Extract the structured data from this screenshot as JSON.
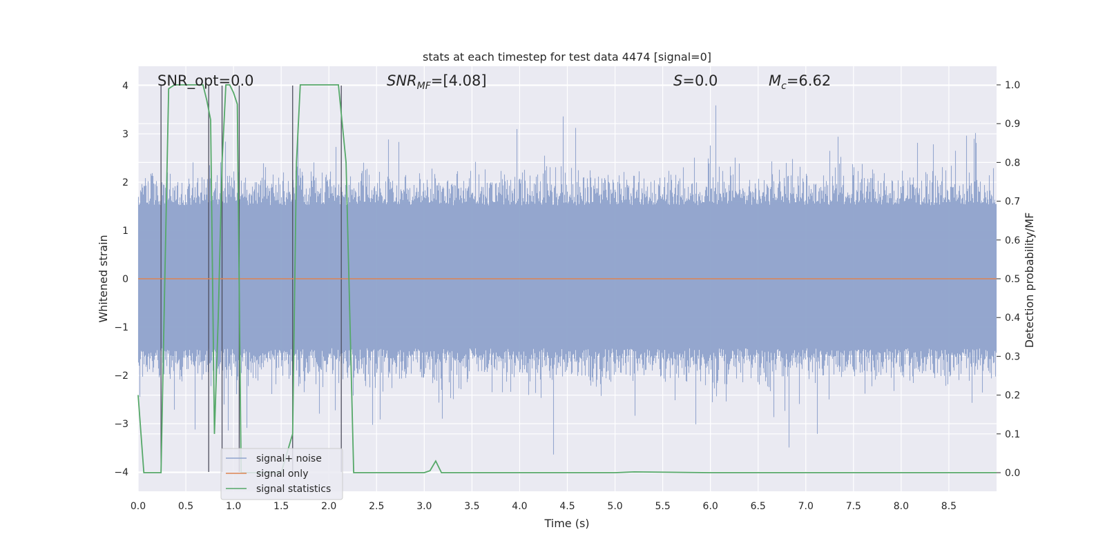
{
  "chart_data": {
    "type": "line",
    "title": "stats at each timestep for test data 4474 [signal=0]",
    "xlabel": "Time (s)",
    "ylabel": "Whitened strain",
    "y2label": "Detection probability/MF",
    "xlim": [
      0.0,
      9.0
    ],
    "ylim": [
      -4.4,
      4.4
    ],
    "y2lim": [
      -0.048,
      1.048
    ],
    "xticks": [
      "0.0",
      "0.5",
      "1.0",
      "1.5",
      "2.0",
      "2.5",
      "3.0",
      "3.5",
      "4.0",
      "4.5",
      "5.0",
      "5.5",
      "6.0",
      "6.5",
      "7.0",
      "7.5",
      "8.0",
      "8.5"
    ],
    "yticks": [
      "4",
      "3",
      "2",
      "1",
      "0",
      "−1",
      "−2",
      "−3",
      "−4"
    ],
    "y2ticks": [
      "1.0",
      "0.9",
      "0.8",
      "0.7",
      "0.6",
      "0.5",
      "0.4",
      "0.3",
      "0.2",
      "0.1",
      "0.0"
    ],
    "annotations": {
      "snr_opt": "SNR_opt=0.0",
      "snr_mf_base": "SNR",
      "snr_mf_sub": "MF",
      "snr_mf_value": "=[4.08]",
      "s_var": "S",
      "s_value": "=0.0",
      "mc_base": "M",
      "mc_sub": "c",
      "mc_value": "=6.62"
    },
    "legend": {
      "placement": "lower-left",
      "entries": [
        {
          "label": "signal+ noise",
          "color": "#8fa3cc"
        },
        {
          "label": "signal only",
          "color": "#dd8452"
        },
        {
          "label": "signal statistics",
          "color": "#55a868"
        }
      ]
    },
    "series": [
      {
        "name": "signal+ noise",
        "axis": "left",
        "description_values": {
          "typical_envelope": [
            -1.8,
            1.9
          ],
          "seed": 4474
        }
      },
      {
        "name": "signal only",
        "axis": "left",
        "x": [
          0.0,
          9.0
        ],
        "y": [
          0.0,
          0.0
        ]
      },
      {
        "name": "signal statistics",
        "axis": "right",
        "x": [
          0.0,
          0.06,
          0.24,
          0.28,
          0.32,
          0.38,
          0.44,
          0.52,
          0.6,
          0.68,
          0.72,
          0.76,
          0.8,
          0.84,
          0.88,
          0.92,
          0.96,
          1.0,
          1.04,
          1.08,
          1.12,
          1.3,
          1.5,
          1.62,
          1.66,
          1.7,
          1.8,
          2.0,
          2.1,
          2.14,
          2.18,
          2.26,
          2.36,
          2.6,
          3.0,
          3.06,
          3.12,
          3.18,
          4.0,
          5.0,
          5.2,
          6.0,
          7.0,
          8.0,
          9.0
        ],
        "y": [
          0.2,
          0.0,
          0.0,
          0.5,
          0.99,
          1.0,
          1.0,
          1.0,
          1.0,
          1.0,
          0.96,
          0.91,
          0.1,
          0.4,
          0.8,
          1.0,
          1.0,
          0.98,
          0.95,
          0.0,
          0.0,
          0.0,
          0.0,
          0.1,
          0.8,
          1.0,
          1.0,
          1.0,
          1.0,
          0.9,
          0.8,
          0.0,
          0.0,
          0.0,
          0.0,
          0.005,
          0.03,
          0.0,
          0.0,
          0.0,
          0.002,
          0.0,
          0.0,
          0.0,
          0.0
        ]
      }
    ],
    "vertical_markers_x": [
      0.24,
      0.74,
      0.88,
      1.06,
      1.62,
      2.13
    ],
    "vertical_markers_ylim": [
      -4.0,
      4.0
    ]
  }
}
